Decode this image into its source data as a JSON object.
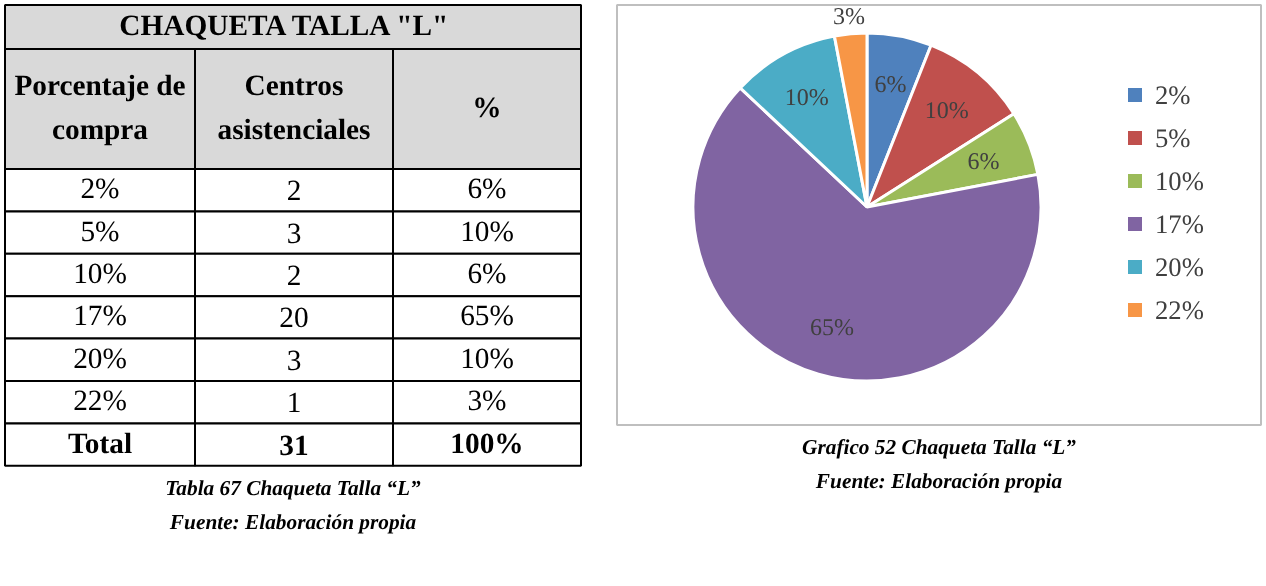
{
  "chart_data": [
    {
      "type": "other",
      "title": "CHAQUETA  TALLA  \"L\"",
      "xlabel": "Porcentaje de compra",
      "categories": [
        "2%",
        "5%",
        "10%",
        "17%",
        "20%",
        "22%",
        "Total"
      ],
      "series": [
        {
          "name": "Centros asistenciales",
          "values": [
            2,
            3,
            2,
            20,
            3,
            1,
            31
          ]
        },
        {
          "name": "%",
          "values": [
            6,
            10,
            6,
            65,
            10,
            3,
            100
          ],
          "value_labels": [
            "6%",
            "10%",
            "6%",
            "65%",
            "10%",
            "3%",
            "100%"
          ]
        }
      ],
      "data_labels": true,
      "annotations": [
        "Tabla 67 Chaqueta Talla “L”",
        "Fuente: Elaboración propia"
      ]
    },
    {
      "type": "pie",
      "categories": [
        "2%",
        "5%",
        "10%",
        "17%",
        "20%",
        "22%"
      ],
      "values": [
        6,
        10,
        6,
        65,
        10,
        3
      ],
      "value_labels": [
        "6%",
        "10%",
        "6%",
        "65%",
        "10%",
        "3%"
      ],
      "colors": [
        "#4f81bd",
        "#c0504d",
        "#9bbb59",
        "#8064a2",
        "#4bacc6",
        "#f79646"
      ],
      "legend": "right",
      "annotations": [
        "Grafico 52 Chaqueta Talla “L”",
        "Fuente: Elaboración propia"
      ]
    }
  ]
}
